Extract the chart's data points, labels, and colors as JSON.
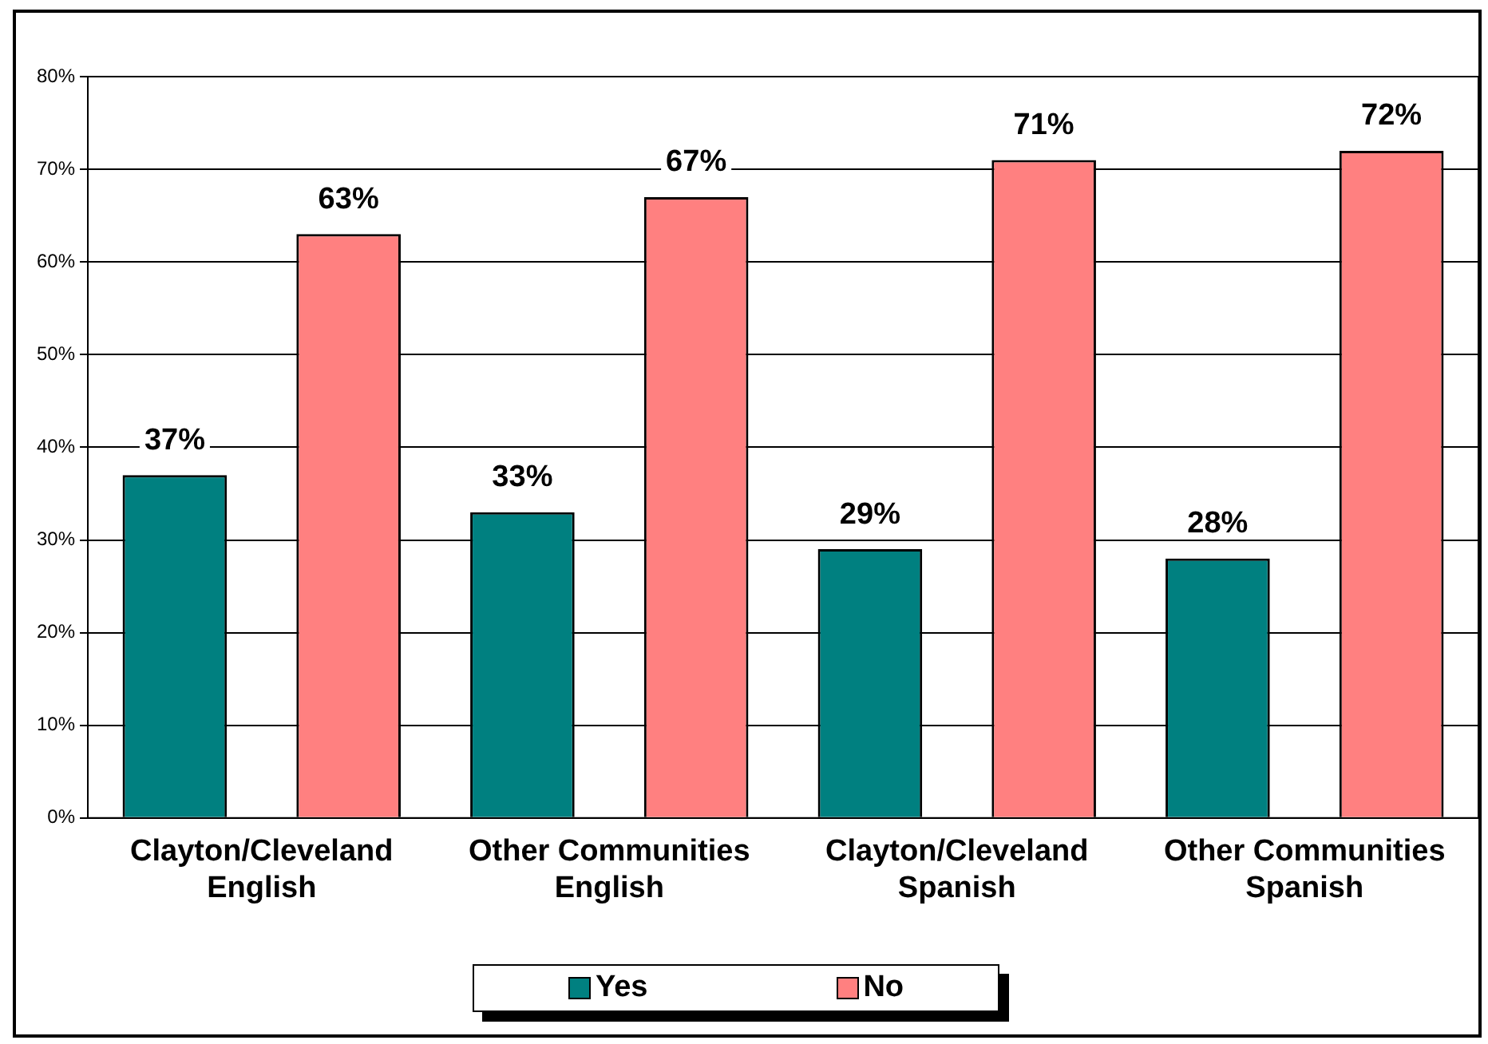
{
  "chart_data": {
    "type": "bar",
    "categories": [
      "Clayton/Cleveland\nEnglish",
      "Other Communities\nEnglish",
      "Clayton/Cleveland\nSpanish",
      "Other Communities\nSpanish"
    ],
    "series": [
      {
        "name": "Yes",
        "color": "#008080",
        "values": [
          37,
          33,
          29,
          28
        ],
        "value_labels": [
          "37%",
          "33%",
          "29%",
          "28%"
        ]
      },
      {
        "name": "No",
        "color": "#ff8080",
        "values": [
          63,
          67,
          71,
          72
        ],
        "value_labels": [
          "63%",
          "67%",
          "71%",
          "72%"
        ]
      }
    ],
    "ylim": [
      0,
      80
    ],
    "yticks": [
      {
        "value": 0,
        "label": "0%"
      },
      {
        "value": 10,
        "label": "10%"
      },
      {
        "value": 20,
        "label": "20%"
      },
      {
        "value": 30,
        "label": "30%"
      },
      {
        "value": 40,
        "label": "40%"
      },
      {
        "value": 50,
        "label": "50%"
      },
      {
        "value": 60,
        "label": "60%"
      },
      {
        "value": 70,
        "label": "70%"
      },
      {
        "value": 80,
        "label": "80%"
      }
    ],
    "grid": "y",
    "legend": "bottom"
  }
}
